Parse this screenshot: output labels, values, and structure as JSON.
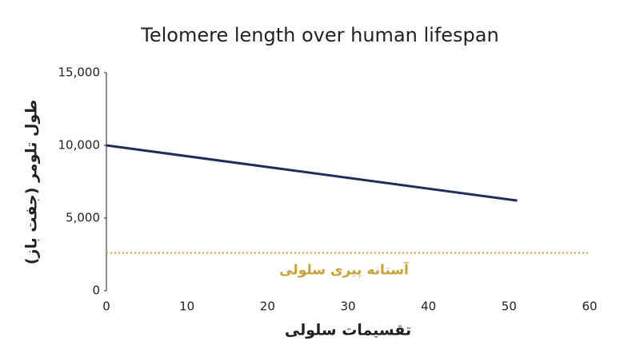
{
  "chart_data": {
    "type": "line",
    "title": "Telomere length over human lifespan",
    "x_label": "تقسیمات سلولی",
    "y_label": "طول تلومر (جفت باز)",
    "x": [
      0,
      51
    ],
    "series": [
      {
        "name": "طول تلومر",
        "color": "#1f2d5a",
        "values": [
          10000,
          6200
        ]
      }
    ],
    "threshold": {
      "value": 2600,
      "label": "آستانه پیری سلولی",
      "color": "#c9a233"
    },
    "xlim": [
      0,
      60
    ],
    "xticks": [
      0,
      10,
      20,
      30,
      40,
      50,
      60
    ],
    "ylim": [
      0,
      15000
    ],
    "yticks": [
      0,
      {
        "value": 5000,
        "label": "5,000"
      },
      {
        "value": 10000,
        "label": "10,000"
      },
      {
        "value": 15000,
        "label": "15,000"
      }
    ],
    "grid": false
  }
}
